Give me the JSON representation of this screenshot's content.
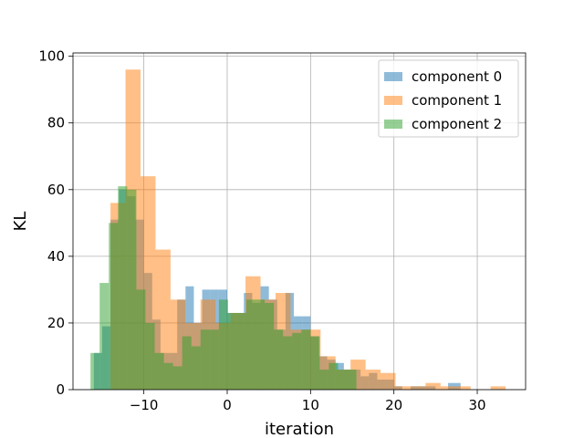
{
  "chart_data": {
    "type": "histogram",
    "xlabel": "iteration",
    "ylabel": "KL",
    "xlim": [
      -18.5,
      35.8
    ],
    "ylim": [
      0,
      101
    ],
    "x_ticks": [
      -10,
      0,
      10,
      20,
      30
    ],
    "y_ticks": [
      0,
      20,
      40,
      60,
      80,
      100
    ],
    "grid": true,
    "legend_position": "top-right",
    "series": [
      {
        "name": "component 0",
        "color": "#1f77b4",
        "bins": [
          {
            "x0": -16.0,
            "x1": -15.0,
            "value": 11
          },
          {
            "x0": -15.0,
            "x1": -14.0,
            "value": 19
          },
          {
            "x0": -14.0,
            "x1": -13.0,
            "value": 51
          },
          {
            "x0": -13.0,
            "x1": -12.0,
            "value": 60
          },
          {
            "x0": -12.0,
            "x1": -11.0,
            "value": 58
          },
          {
            "x0": -11.0,
            "x1": -10.0,
            "value": 51
          },
          {
            "x0": -10.0,
            "x1": -9.0,
            "value": 35
          },
          {
            "x0": -9.0,
            "x1": -8.0,
            "value": 21
          },
          {
            "x0": -8.0,
            "x1": -7.0,
            "value": 11
          },
          {
            "x0": -7.0,
            "x1": -6.0,
            "value": 11
          },
          {
            "x0": -6.0,
            "x1": -5.0,
            "value": 27
          },
          {
            "x0": -5.0,
            "x1": -4.0,
            "value": 31
          },
          {
            "x0": -4.0,
            "x1": -3.0,
            "value": 20
          },
          {
            "x0": -3.0,
            "x1": -2.0,
            "value": 30
          },
          {
            "x0": -2.0,
            "x1": -1.0,
            "value": 30
          },
          {
            "x0": -1.0,
            "x1": 0.0,
            "value": 30
          },
          {
            "x0": 0.0,
            "x1": 1.0,
            "value": 23
          },
          {
            "x0": 1.0,
            "x1": 2.0,
            "value": 23
          },
          {
            "x0": 2.0,
            "x1": 3.0,
            "value": 29
          },
          {
            "x0": 3.0,
            "x1": 4.0,
            "value": 26
          },
          {
            "x0": 4.0,
            "x1": 5.0,
            "value": 31
          },
          {
            "x0": 5.0,
            "x1": 6.0,
            "value": 27
          },
          {
            "x0": 6.0,
            "x1": 7.0,
            "value": 18
          },
          {
            "x0": 7.0,
            "x1": 8.0,
            "value": 29
          },
          {
            "x0": 8.0,
            "x1": 9.0,
            "value": 22
          },
          {
            "x0": 9.0,
            "x1": 10.0,
            "value": 22
          },
          {
            "x0": 10.0,
            "x1": 11.0,
            "value": 16
          },
          {
            "x0": 11.0,
            "x1": 12.0,
            "value": 10
          },
          {
            "x0": 12.0,
            "x1": 13.0,
            "value": 9
          },
          {
            "x0": 13.0,
            "x1": 14.0,
            "value": 8
          },
          {
            "x0": 14.0,
            "x1": 15.0,
            "value": 6
          },
          {
            "x0": 15.0,
            "x1": 16.0,
            "value": 6
          },
          {
            "x0": 16.0,
            "x1": 17.0,
            "value": 4
          },
          {
            "x0": 17.0,
            "x1": 18.0,
            "value": 5
          },
          {
            "x0": 18.0,
            "x1": 19.0,
            "value": 3
          },
          {
            "x0": 19.0,
            "x1": 20.0,
            "value": 3
          },
          {
            "x0": 20.0,
            "x1": 21.0,
            "value": 1
          },
          {
            "x0": 22.0,
            "x1": 23.0,
            "value": 1
          },
          {
            "x0": 23.0,
            "x1": 24.0,
            "value": 1
          },
          {
            "x0": 24.0,
            "x1": 25.0,
            "value": 1
          },
          {
            "x0": 26.5,
            "x1": 28.0,
            "value": 2
          }
        ]
      },
      {
        "name": "component 1",
        "color": "#ff7f0e",
        "bins": [
          {
            "x0": -14.0,
            "x1": -12.2,
            "value": 56
          },
          {
            "x0": -12.2,
            "x1": -10.4,
            "value": 96
          },
          {
            "x0": -10.4,
            "x1": -8.6,
            "value": 64
          },
          {
            "x0": -8.6,
            "x1": -6.8,
            "value": 42
          },
          {
            "x0": -6.8,
            "x1": -5.0,
            "value": 27
          },
          {
            "x0": -5.0,
            "x1": -3.2,
            "value": 20
          },
          {
            "x0": -3.2,
            "x1": -1.4,
            "value": 27
          },
          {
            "x0": -1.4,
            "x1": 0.4,
            "value": 20
          },
          {
            "x0": 0.4,
            "x1": 2.2,
            "value": 23
          },
          {
            "x0": 2.2,
            "x1": 4.0,
            "value": 34
          },
          {
            "x0": 4.0,
            "x1": 5.8,
            "value": 27
          },
          {
            "x0": 5.8,
            "x1": 7.6,
            "value": 29
          },
          {
            "x0": 7.6,
            "x1": 9.4,
            "value": 18
          },
          {
            "x0": 9.4,
            "x1": 11.2,
            "value": 18
          },
          {
            "x0": 11.2,
            "x1": 13.0,
            "value": 10
          },
          {
            "x0": 13.0,
            "x1": 14.8,
            "value": 6
          },
          {
            "x0": 14.8,
            "x1": 16.6,
            "value": 9
          },
          {
            "x0": 16.6,
            "x1": 18.4,
            "value": 6
          },
          {
            "x0": 18.4,
            "x1": 20.2,
            "value": 5
          },
          {
            "x0": 20.2,
            "x1": 22.0,
            "value": 1
          },
          {
            "x0": 22.0,
            "x1": 23.8,
            "value": 1
          },
          {
            "x0": 23.8,
            "x1": 25.6,
            "value": 2
          },
          {
            "x0": 25.6,
            "x1": 27.4,
            "value": 1
          },
          {
            "x0": 27.4,
            "x1": 29.2,
            "value": 1
          },
          {
            "x0": 31.6,
            "x1": 33.4,
            "value": 1
          }
        ]
      },
      {
        "name": "component 2",
        "color": "#2ca02c",
        "bins": [
          {
            "x0": -16.4,
            "x1": -15.3,
            "value": 11
          },
          {
            "x0": -15.3,
            "x1": -14.2,
            "value": 32
          },
          {
            "x0": -14.2,
            "x1": -13.1,
            "value": 50
          },
          {
            "x0": -13.1,
            "x1": -12.0,
            "value": 61
          },
          {
            "x0": -12.0,
            "x1": -10.9,
            "value": 60
          },
          {
            "x0": -10.9,
            "x1": -9.8,
            "value": 30
          },
          {
            "x0": -9.8,
            "x1": -8.7,
            "value": 20
          },
          {
            "x0": -8.7,
            "x1": -7.6,
            "value": 11
          },
          {
            "x0": -7.6,
            "x1": -6.5,
            "value": 8
          },
          {
            "x0": -6.5,
            "x1": -5.4,
            "value": 7
          },
          {
            "x0": -5.4,
            "x1": -4.3,
            "value": 16
          },
          {
            "x0": -4.3,
            "x1": -3.2,
            "value": 13
          },
          {
            "x0": -3.2,
            "x1": -2.1,
            "value": 18
          },
          {
            "x0": -2.1,
            "x1": -1.0,
            "value": 18
          },
          {
            "x0": -1.0,
            "x1": 0.1,
            "value": 27
          },
          {
            "x0": 0.1,
            "x1": 1.2,
            "value": 23
          },
          {
            "x0": 1.2,
            "x1": 2.3,
            "value": 23
          },
          {
            "x0": 2.3,
            "x1": 3.4,
            "value": 27
          },
          {
            "x0": 3.4,
            "x1": 4.5,
            "value": 27
          },
          {
            "x0": 4.5,
            "x1": 5.6,
            "value": 26
          },
          {
            "x0": 5.6,
            "x1": 6.7,
            "value": 18
          },
          {
            "x0": 6.7,
            "x1": 7.8,
            "value": 16
          },
          {
            "x0": 7.8,
            "x1": 8.9,
            "value": 17
          },
          {
            "x0": 8.9,
            "x1": 10.0,
            "value": 18
          },
          {
            "x0": 10.0,
            "x1": 11.1,
            "value": 16
          },
          {
            "x0": 11.1,
            "x1": 12.2,
            "value": 6
          },
          {
            "x0": 12.2,
            "x1": 13.3,
            "value": 8
          },
          {
            "x0": 13.3,
            "x1": 14.4,
            "value": 6
          },
          {
            "x0": 14.4,
            "x1": 15.5,
            "value": 6
          }
        ]
      }
    ]
  }
}
